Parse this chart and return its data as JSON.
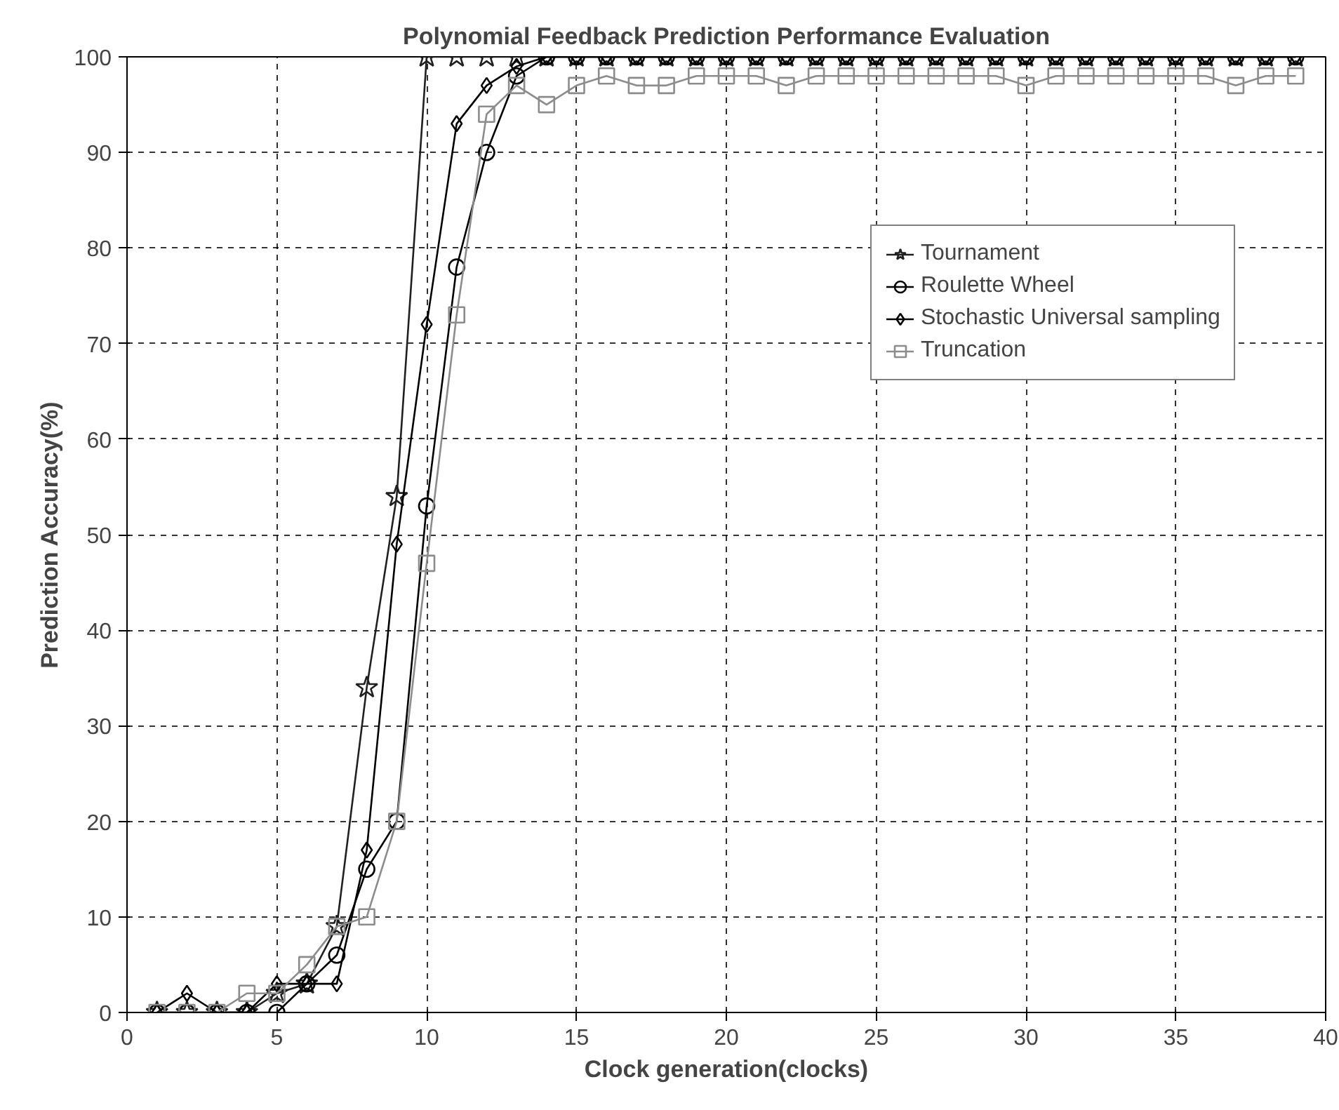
{
  "chart_data": {
    "type": "line",
    "title": "Polynomial Feedback Prediction Performance Evaluation",
    "xlabel": "Clock generation(clocks)",
    "ylabel": "Prediction Accuracy(%)",
    "x": [
      1,
      2,
      3,
      4,
      5,
      6,
      7,
      8,
      9,
      10,
      11,
      12,
      13,
      14,
      15,
      16,
      17,
      18,
      19,
      20,
      21,
      22,
      23,
      24,
      25,
      26,
      27,
      28,
      29,
      30,
      31,
      32,
      33,
      34,
      35,
      36,
      37,
      38,
      39
    ],
    "series": [
      {
        "name": "Tournament",
        "color": "#202020",
        "marker": "star",
        "values": [
          0,
          0,
          0,
          0,
          2,
          3,
          9,
          34,
          54,
          100,
          100,
          100,
          100,
          100,
          100,
          100,
          100,
          100,
          100,
          100,
          100,
          100,
          100,
          100,
          100,
          100,
          100,
          100,
          100,
          100,
          100,
          100,
          100,
          100,
          100,
          100,
          100,
          100,
          100
        ]
      },
      {
        "name": "Roulette Wheel",
        "color": "#000000",
        "marker": "circle",
        "values": [
          0,
          0,
          0,
          0,
          0,
          3,
          6,
          15,
          20,
          53,
          78,
          90,
          98,
          100,
          100,
          100,
          100,
          100,
          100,
          100,
          100,
          100,
          100,
          100,
          100,
          100,
          100,
          100,
          100,
          100,
          100,
          100,
          100,
          100,
          100,
          100,
          100,
          100,
          100
        ]
      },
      {
        "name": "Stochastic Universal sampling",
        "color": "#000000",
        "marker": "diamond",
        "values": [
          0,
          2,
          0,
          0,
          3,
          3,
          3,
          17,
          49,
          72,
          93,
          97,
          99,
          100,
          100,
          100,
          100,
          100,
          100,
          100,
          100,
          100,
          100,
          100,
          100,
          100,
          100,
          100,
          100,
          100,
          100,
          100,
          100,
          100,
          100,
          100,
          100,
          100,
          100
        ]
      },
      {
        "name": "Truncation",
        "color": "#8c8c8c",
        "marker": "square",
        "values": [
          0,
          0,
          0,
          2,
          2,
          5,
          9,
          10,
          20,
          47,
          73,
          94,
          97,
          95,
          97,
          98,
          97,
          97,
          98,
          98,
          98,
          97,
          98,
          98,
          98,
          98,
          98,
          98,
          98,
          97,
          98,
          98,
          98,
          98,
          98,
          98,
          97,
          98,
          98
        ]
      }
    ],
    "xlim": [
      0,
      40
    ],
    "ylim": [
      0,
      100
    ],
    "xticks": [
      0,
      5,
      10,
      15,
      20,
      25,
      30,
      35,
      40
    ],
    "yticks": [
      0,
      10,
      20,
      30,
      40,
      50,
      60,
      70,
      80,
      90,
      100
    ],
    "grid": true,
    "legend": "top right",
    "line_style": "solid"
  }
}
